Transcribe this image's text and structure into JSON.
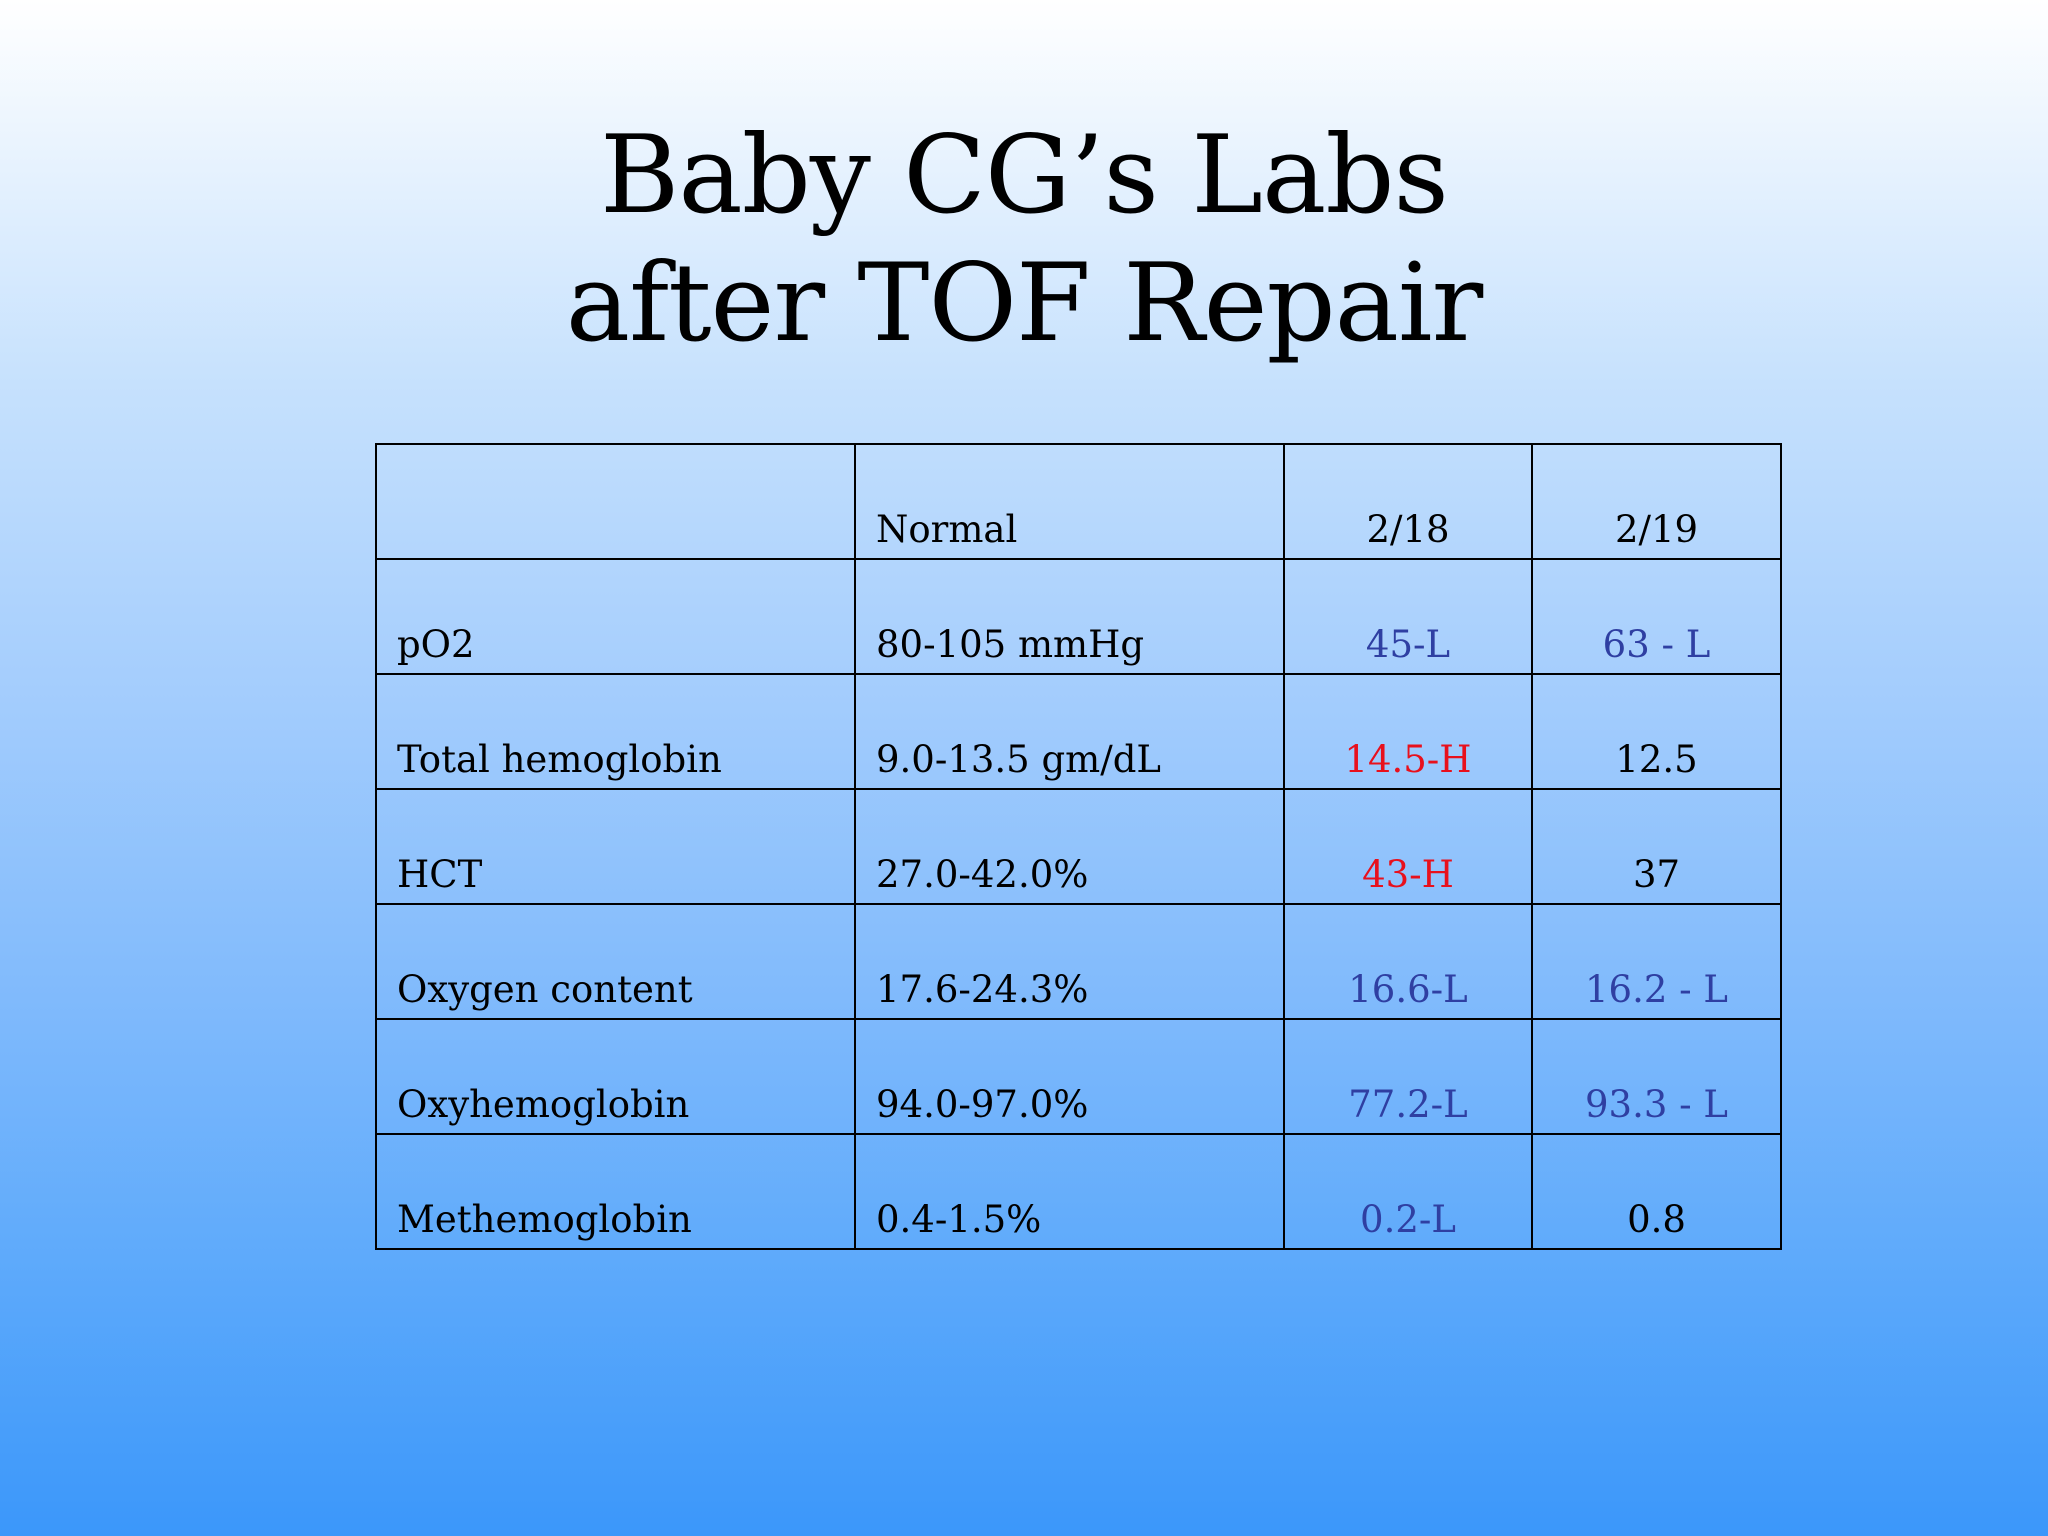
{
  "slide": {
    "title_line1": "Baby CG’s Labs",
    "title_line2": "after TOF Repair"
  },
  "table": {
    "headers": [
      "",
      "Normal",
      "2/18",
      "2/19"
    ],
    "rows": [
      {
        "name": "pO2",
        "normal": "80-105 mmHg",
        "d1": "45-L",
        "d2": "63 - L",
        "d1_flag": "low",
        "d2_flag": "low"
      },
      {
        "name": "Total hemoglobin",
        "normal": "9.0-13.5 gm/dL",
        "d1": "14.5-H",
        "d2": "12.5",
        "d1_flag": "high",
        "d2_flag": "normal"
      },
      {
        "name": "HCT",
        "normal": "27.0-42.0%",
        "d1": "43-H",
        "d2": "37",
        "d1_flag": "high",
        "d2_flag": "normal"
      },
      {
        "name": "Oxygen content",
        "normal": "17.6-24.3%",
        "d1": "16.6-L",
        "d2": "16.2 - L",
        "d1_flag": "low",
        "d2_flag": "low"
      },
      {
        "name": "Oxyhemoglobin",
        "normal": "94.0-97.0%",
        "d1": "77.2-L",
        "d2": "93.3 - L",
        "d1_flag": "low",
        "d2_flag": "low"
      },
      {
        "name": "Methemoglobin",
        "normal": "0.4-1.5%",
        "d1": "0.2-L",
        "d2": "0.8",
        "d1_flag": "low",
        "d2_flag": "normal"
      }
    ]
  },
  "colors": {
    "low": "#2f3fa2",
    "high": "#e8101c",
    "normal": "#000000"
  }
}
